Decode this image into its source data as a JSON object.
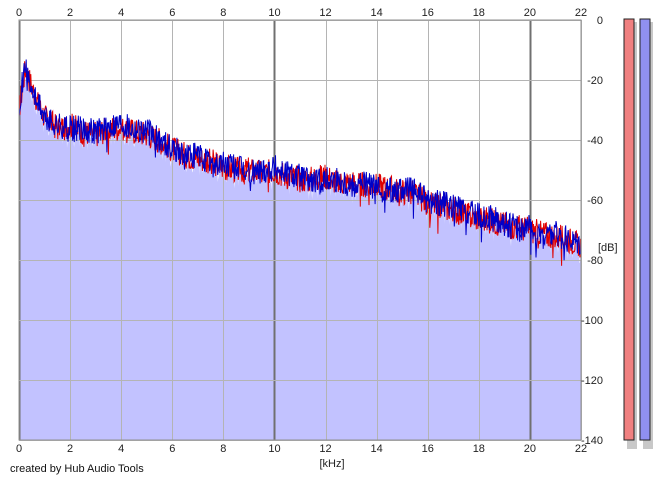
{
  "credit": "created by Hub Audio Tools",
  "colors": {
    "fill": "#c2c2ff",
    "left_channel": "#e00000",
    "right_channel": "#0000c8",
    "grid": "#b4b4b4",
    "grid_major": "#707070",
    "meter_left": "#f08080",
    "meter_right": "#9090f0"
  },
  "chart_data": {
    "type": "line",
    "xlabel": "[kHz]",
    "ylabel": "[dB]",
    "xlim": [
      0,
      22
    ],
    "ylim": [
      -140,
      0
    ],
    "x_ticks": [
      "0",
      "2",
      "4",
      "6",
      "8",
      "10",
      "12",
      "14",
      "16",
      "18",
      "20",
      "22"
    ],
    "y_ticks": [
      "0",
      "-20",
      "-40",
      "-60",
      "-80",
      "-100",
      "-120",
      "-140"
    ],
    "grid": true,
    "series": [
      {
        "channel": "left",
        "x": [
          0,
          0.25,
          0.5,
          0.75,
          1,
          1.5,
          2,
          2.5,
          3,
          3.5,
          4,
          4.5,
          5,
          5.5,
          6,
          6.5,
          7,
          7.5,
          8,
          8.5,
          9,
          9.5,
          10,
          10.5,
          11,
          11.5,
          12,
          12.5,
          13,
          13.5,
          14,
          14.5,
          15,
          15.5,
          16,
          16.5,
          17,
          17.5,
          18,
          18.5,
          19,
          19.5,
          20,
          20.5,
          21,
          21.5,
          22
        ],
        "y": [
          -30,
          -16,
          -22,
          -28,
          -32,
          -36,
          -35,
          -37,
          -38,
          -36,
          -36,
          -37,
          -38,
          -40,
          -43,
          -45,
          -46,
          -47,
          -49,
          -50,
          -50,
          -51,
          -50,
          -52,
          -53,
          -53,
          -52,
          -54,
          -54,
          -55,
          -55,
          -56,
          -57,
          -58,
          -61,
          -62,
          -63,
          -65,
          -66,
          -67,
          -68,
          -69,
          -70,
          -71,
          -72,
          -73,
          -75
        ]
      },
      {
        "channel": "right",
        "x": [
          0,
          0.25,
          0.5,
          0.75,
          1,
          1.5,
          2,
          2.5,
          3,
          3.5,
          4,
          4.5,
          5,
          5.5,
          6,
          6.5,
          7,
          7.5,
          8,
          8.5,
          9,
          9.5,
          10,
          10.5,
          11,
          11.5,
          12,
          12.5,
          13,
          13.5,
          14,
          14.5,
          15,
          15.5,
          16,
          16.5,
          17,
          17.5,
          18,
          18.5,
          19,
          19.5,
          20,
          20.5,
          21,
          21.5,
          22
        ],
        "y": [
          -28,
          -14,
          -24,
          -27,
          -33,
          -35,
          -36,
          -36,
          -37,
          -35,
          -34,
          -36,
          -37,
          -40,
          -42,
          -45,
          -45,
          -48,
          -48,
          -49,
          -51,
          -50,
          -49,
          -51,
          -52,
          -54,
          -53,
          -53,
          -55,
          -54,
          -56,
          -57,
          -56,
          -57,
          -60,
          -61,
          -62,
          -64,
          -65,
          -66,
          -68,
          -69,
          -69,
          -72,
          -71,
          -73,
          -74
        ]
      }
    ],
    "meters": {
      "left": -140,
      "right": -140
    }
  }
}
